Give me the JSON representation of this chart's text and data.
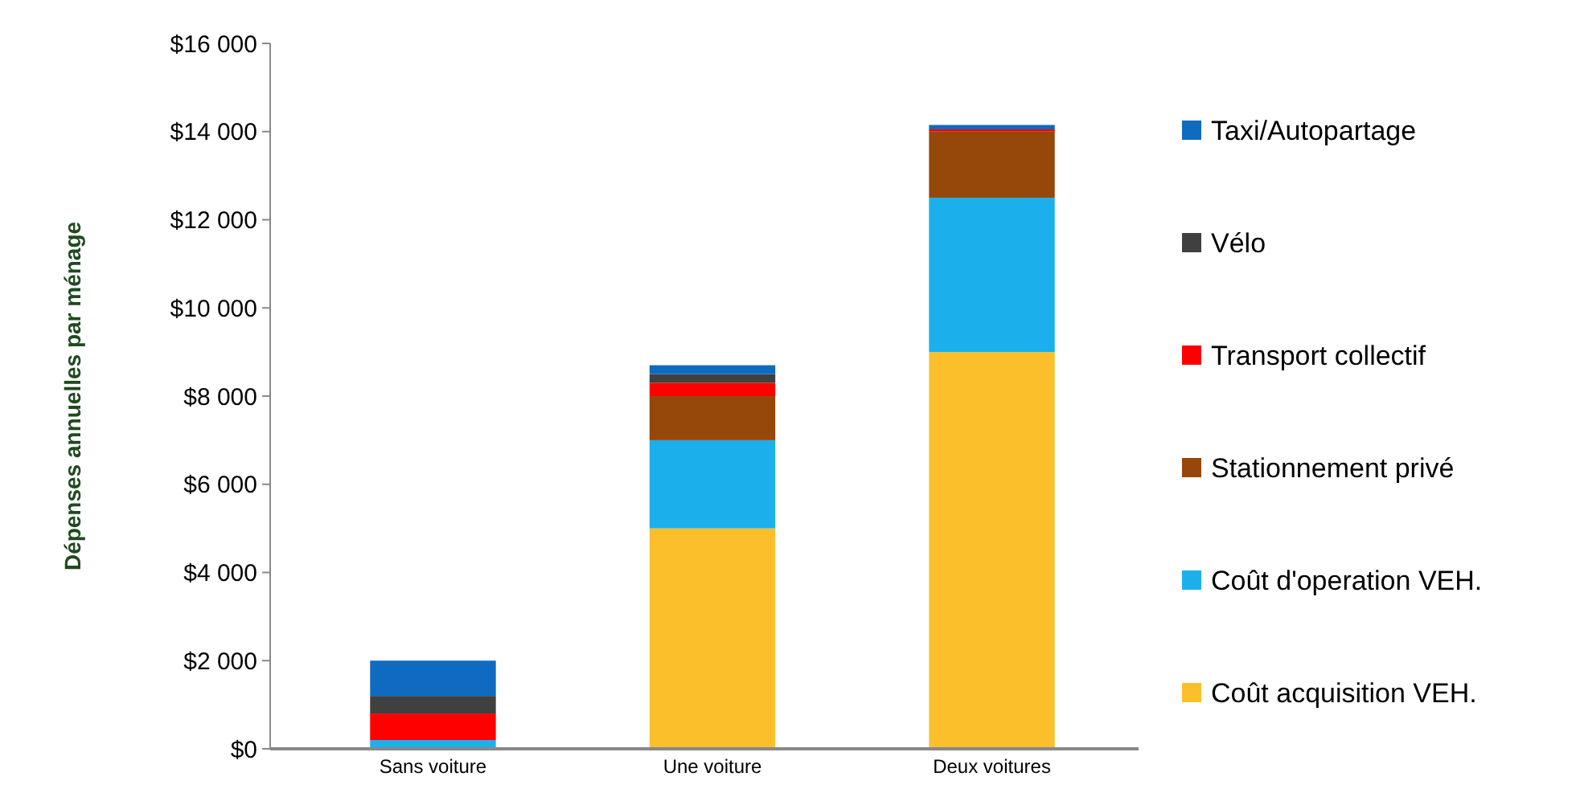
{
  "chart_data": {
    "type": "bar",
    "stacked": true,
    "ylabel": "Dépenses annuelles par ménage",
    "categories": [
      "Sans voiture",
      "Une voiture",
      "Deux voitures"
    ],
    "series": [
      {
        "name": "Coût acquisition VEH.",
        "color": "#fbbf2c",
        "values": [
          0,
          5000,
          9000
        ]
      },
      {
        "name": "Coût d'operation VEH.",
        "color": "#1bb0ec",
        "values": [
          200,
          2000,
          3500
        ]
      },
      {
        "name": "Stationnement privé",
        "color": "#96470a",
        "values": [
          0,
          1000,
          1500
        ]
      },
      {
        "name": "Transport collectif",
        "color": "#fe0000",
        "values": [
          600,
          300,
          50
        ]
      },
      {
        "name": "Vélo",
        "color": "#404040",
        "values": [
          400,
          200,
          0
        ]
      },
      {
        "name": "Taxi/Autopartage",
        "color": "#0e6bbf",
        "values": [
          800,
          200,
          100
        ]
      }
    ],
    "ylim": [
      0,
      16000
    ],
    "yticks": [
      {
        "value": 0,
        "label": "$0"
      },
      {
        "value": 2000,
        "label": "$2 000"
      },
      {
        "value": 4000,
        "label": "$4 000"
      },
      {
        "value": 6000,
        "label": "$6 000"
      },
      {
        "value": 8000,
        "label": "$8 000"
      },
      {
        "value": 10000,
        "label": "$10 000"
      },
      {
        "value": 12000,
        "label": "$12 000"
      },
      {
        "value": 14000,
        "label": "$14 000"
      },
      {
        "value": 16000,
        "label": "$16 000"
      }
    ],
    "grid": false,
    "legend": "right"
  }
}
